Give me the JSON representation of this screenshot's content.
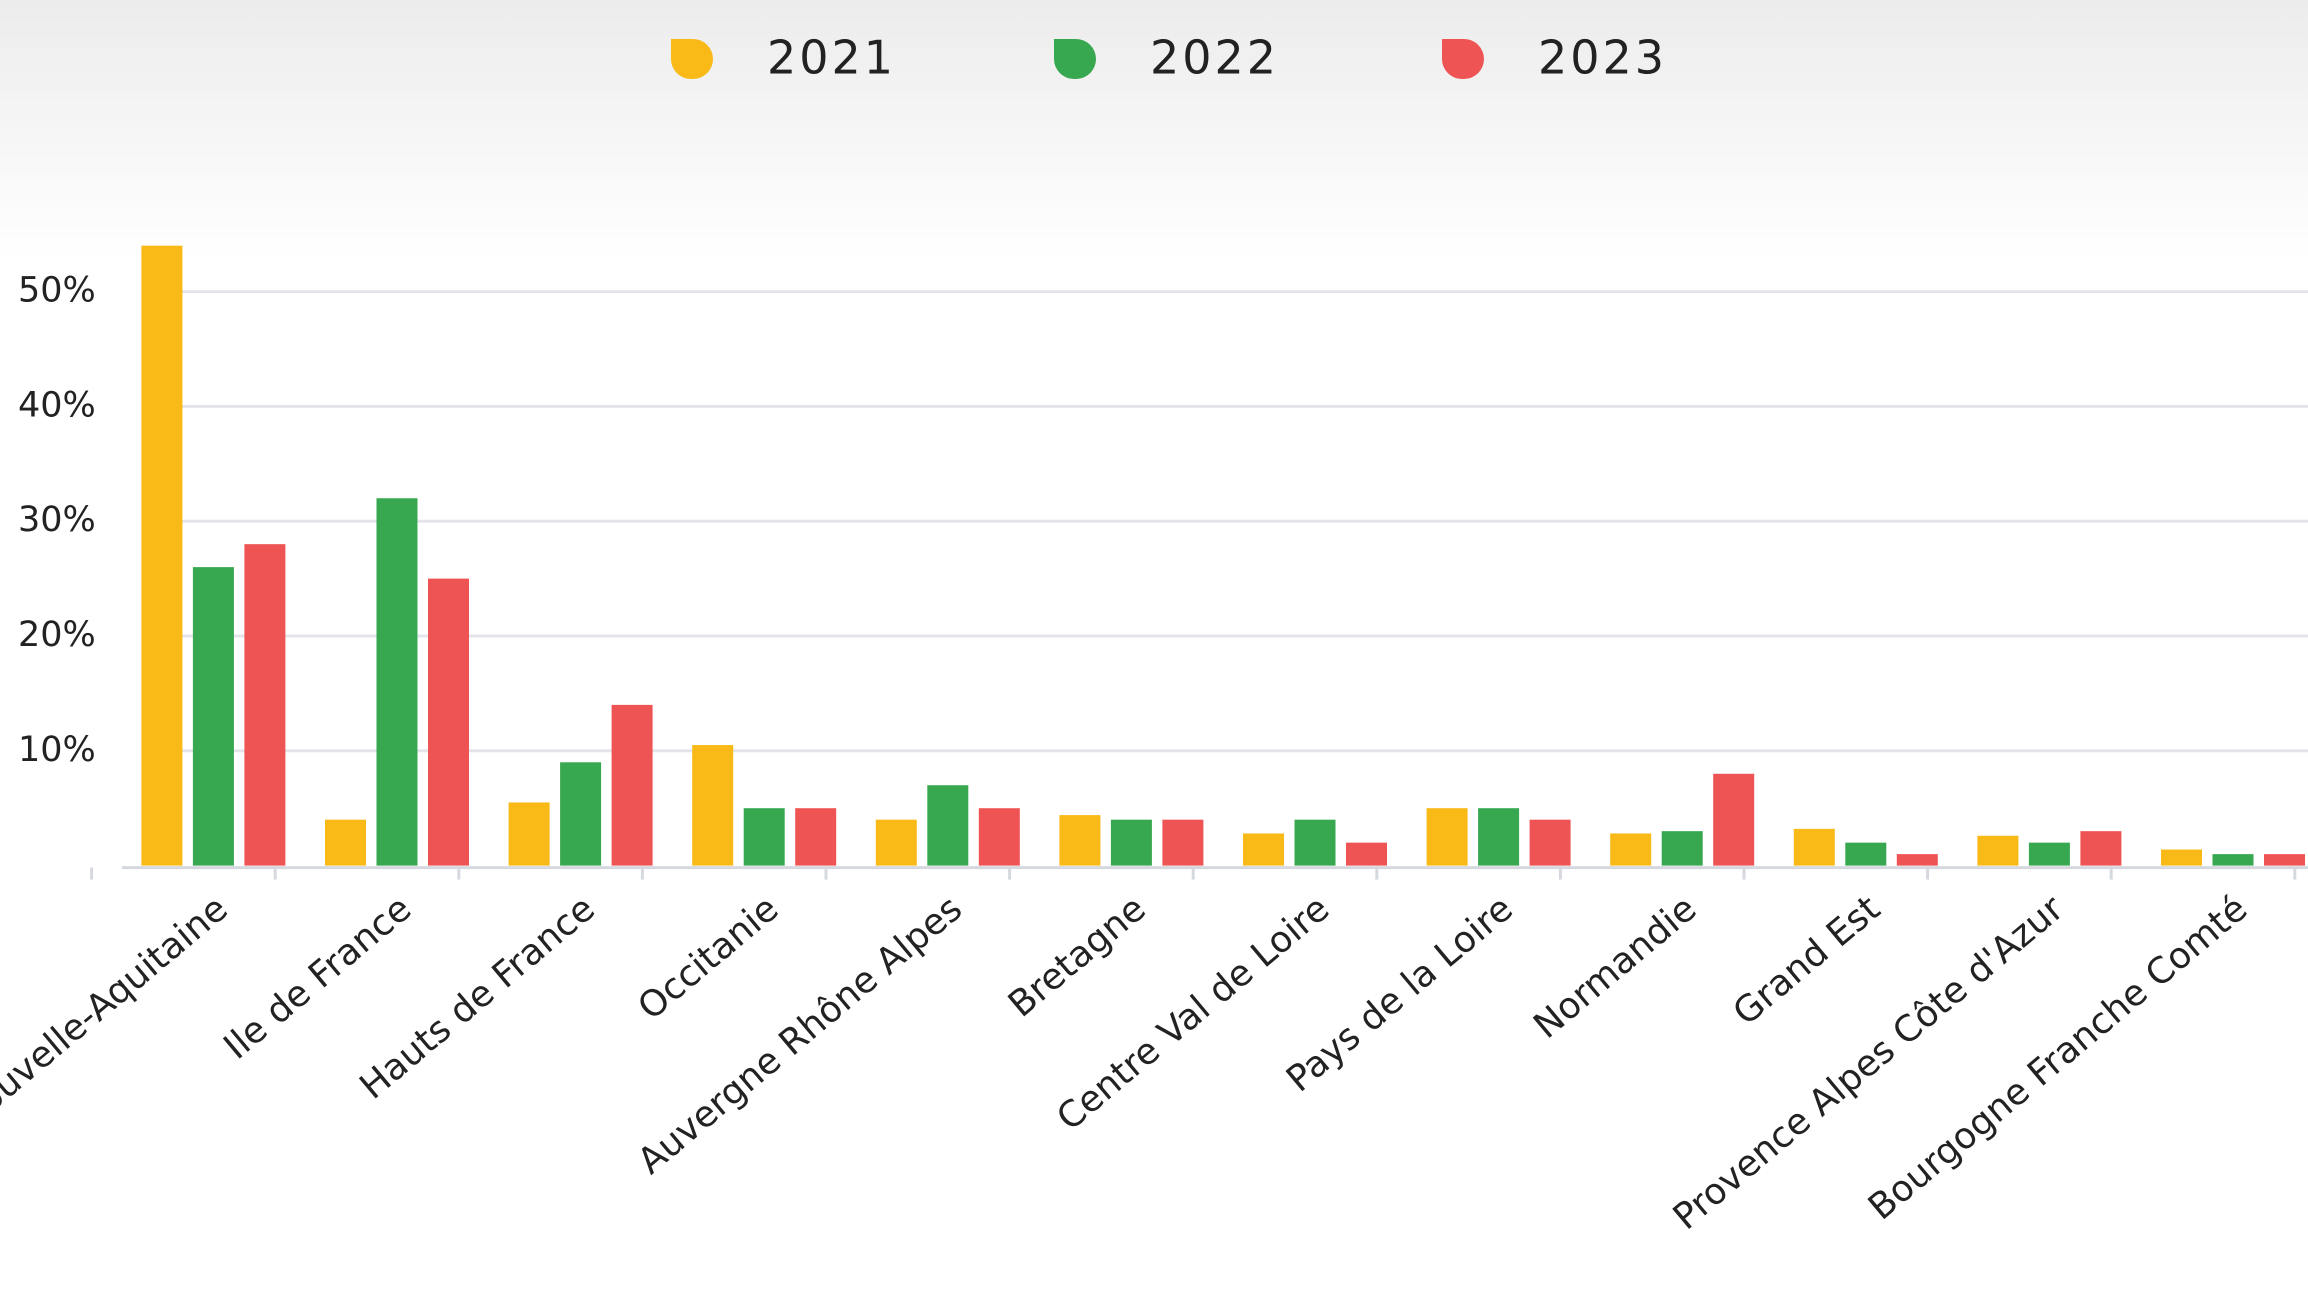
{
  "chart_data": {
    "type": "bar",
    "categories": [
      "Nouvelle-Aquitaine",
      "Ile de France",
      "Hauts de France",
      "Occitanie",
      "Auvergne Rhône Alpes",
      "Bretagne",
      "Centre Val de Loire",
      "Pays de la Loire",
      "Normandie",
      "Grand Est",
      "Provence Alpes Côte d'Azur",
      "Bourgogne Franche Comté"
    ],
    "series": [
      {
        "name": "2021",
        "color": "#f9b916",
        "values": [
          54,
          4,
          5.5,
          10.5,
          4,
          4.4,
          2.8,
          5,
          2.8,
          3.2,
          2.6,
          1.4
        ]
      },
      {
        "name": "2022",
        "color": "#37a84f",
        "values": [
          26,
          32,
          9,
          5,
          7,
          4,
          4,
          5,
          3,
          2,
          2,
          1
        ]
      },
      {
        "name": "2023",
        "color": "#ef5454",
        "values": [
          28,
          25,
          14,
          5,
          5,
          4,
          2,
          4,
          8,
          1,
          3,
          1
        ]
      }
    ],
    "ylim": [
      0,
      60
    ],
    "yticks": [
      {
        "value": 10,
        "label": "10%"
      },
      {
        "value": 20,
        "label": "20%"
      },
      {
        "value": 30,
        "label": "30%"
      },
      {
        "value": 40,
        "label": "40%"
      },
      {
        "value": 50,
        "label": "50%"
      }
    ],
    "grid": true,
    "legend": "top"
  }
}
